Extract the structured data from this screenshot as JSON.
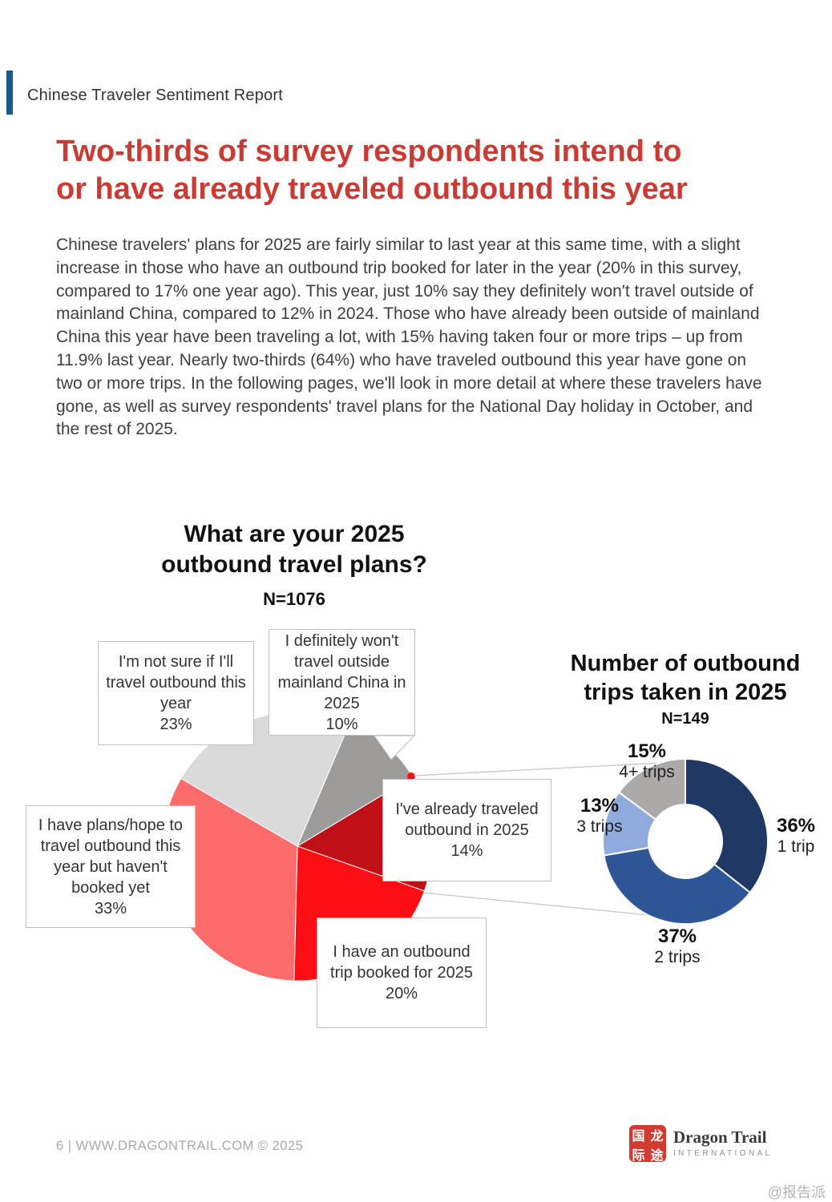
{
  "header": {
    "accent_color": "#1A5A89",
    "title": "Chinese Traveler Sentiment Report"
  },
  "headline": {
    "text": "Two-thirds of survey respondents intend to\nor have already traveled outbound this year",
    "color": "#C93B33"
  },
  "body_paragraph": "Chinese travelers' plans for 2025 are fairly similar to last year at this same time, with a slight increase in those who have an outbound trip booked for later in the year (20% in this survey, compared to 17% one year ago). This year, just 10% say they definitely won't travel outside of mainland China, compared to 12% in 2024. Those who have already been outside of mainland China this year have been traveling a lot, with 15% having taken four or more trips – up from 11.9% last year. Nearly two-thirds (64%) who have traveled outbound this year have gone on two or more trips. In the following pages, we'll look in more detail at where these travelers have gone, as well as survey respondents' travel plans for the National Day holiday in October, and the rest of 2025.",
  "chart_data": [
    {
      "type": "pie",
      "title": "What are your 2025\noutbound travel plans?",
      "sample_label": "N=1076",
      "start_angle_deg": 23,
      "legend": "callout boxes with leader lines",
      "slices": [
        {
          "label": "I definitely won't travel outside mainland China in 2025",
          "value": 10,
          "pct": "10%",
          "color": "#9E9B9B"
        },
        {
          "label": "I've already traveled outbound in 2025",
          "value": 14,
          "pct": "14%",
          "color": "#BE1016"
        },
        {
          "label": "I have an outbound trip booked for 2025",
          "value": 20,
          "pct": "20%",
          "color": "#FB0F15"
        },
        {
          "label": "I have plans/hope to travel outbound this year but haven't booked yet",
          "value": 33,
          "pct": "33%",
          "color": "#FC6C6B"
        },
        {
          "label": "I'm not sure if I'll travel outbound this year",
          "value": 23,
          "pct": "23%",
          "color": "#DADADA"
        }
      ]
    },
    {
      "type": "donut",
      "title": "Number of outbound\ntrips taken in 2025",
      "sample_label": "N=149",
      "start_angle_deg": 0,
      "legend": "labels around ring",
      "slices": [
        {
          "label": "1 trip",
          "value": 36,
          "pct": "36%",
          "color": "#1F3864"
        },
        {
          "label": "2 trips",
          "value": 37,
          "pct": "37%",
          "color": "#2E5596"
        },
        {
          "label": "3 trips",
          "value": 13,
          "pct": "13%",
          "color": "#8FAADC"
        },
        {
          "label": "4+ trips",
          "value": 15,
          "pct": "15%",
          "color": "#ACA9A9"
        }
      ]
    }
  ],
  "footer": {
    "page_info": "6  |  WWW.DRAGONTRAIL.COM ©  2025",
    "logo": {
      "seal_chars": [
        "国",
        "龙",
        "际",
        "途"
      ],
      "seal_color": "#D23B31",
      "name": "Dragon Trail",
      "subtitle": "INTERNATIONAL"
    }
  },
  "watermark": "@报告派"
}
